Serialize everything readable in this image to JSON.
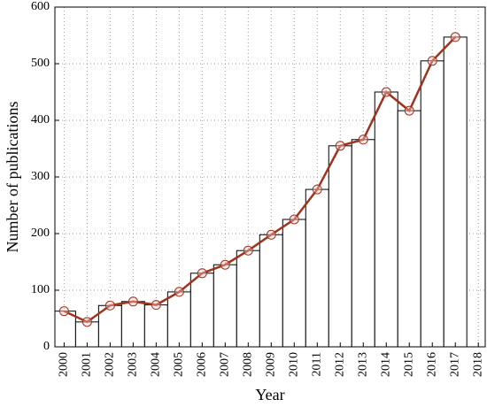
{
  "chart_data": {
    "type": "bar",
    "x_label": "Year",
    "y_label": "Number of publications",
    "x": [
      2000,
      2001,
      2002,
      2003,
      2004,
      2005,
      2006,
      2007,
      2008,
      2009,
      2010,
      2011,
      2012,
      2013,
      2014,
      2015,
      2016,
      2017
    ],
    "values": [
      63,
      44,
      73,
      80,
      74,
      97,
      130,
      145,
      170,
      198,
      225,
      278,
      355,
      366,
      450,
      417,
      505,
      547
    ],
    "color": "#ffffff",
    "edge_color": "#000000",
    "line_overlay": true,
    "line_color": "#a0321e",
    "xlim": [
      1999.6,
      2018.3
    ],
    "xticks": [
      2000,
      2001,
      2002,
      2003,
      2004,
      2005,
      2006,
      2007,
      2008,
      2009,
      2010,
      2011,
      2012,
      2013,
      2014,
      2015,
      2016,
      2017,
      2018
    ],
    "ylim": [
      0,
      600
    ],
    "yticks": [
      0,
      100,
      200,
      300,
      400,
      500,
      600
    ],
    "grid": true
  }
}
